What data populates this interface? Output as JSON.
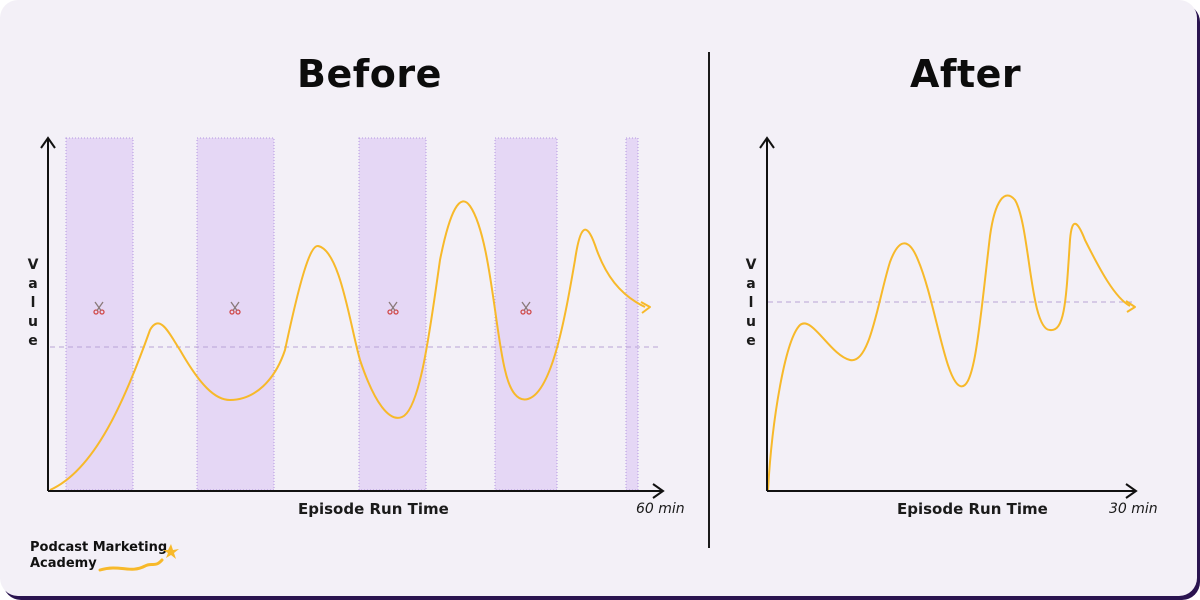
{
  "before": {
    "title": "Before",
    "ylabel_letters": [
      "V",
      "a",
      "l",
      "u",
      "e"
    ],
    "xlabel": "Episode Run Time",
    "xmax_label": "60 min",
    "cut_icon": "scissors-icon"
  },
  "after": {
    "title": "After",
    "ylabel_letters": [
      "V",
      "a",
      "l",
      "u",
      "e"
    ],
    "xlabel": "Episode Run Time",
    "xmax_label": "30 min"
  },
  "logo": {
    "line1": "Podcast Marketing",
    "line2": "Academy"
  },
  "colors": {
    "background": "#f3f0f7",
    "curve": "#f7b92a",
    "cut_region": "#e5d7f5",
    "cut_border": "#b497e0",
    "average_line": "#b9a3d6",
    "axis": "#111111",
    "border_shadow": "#2a1450"
  }
}
